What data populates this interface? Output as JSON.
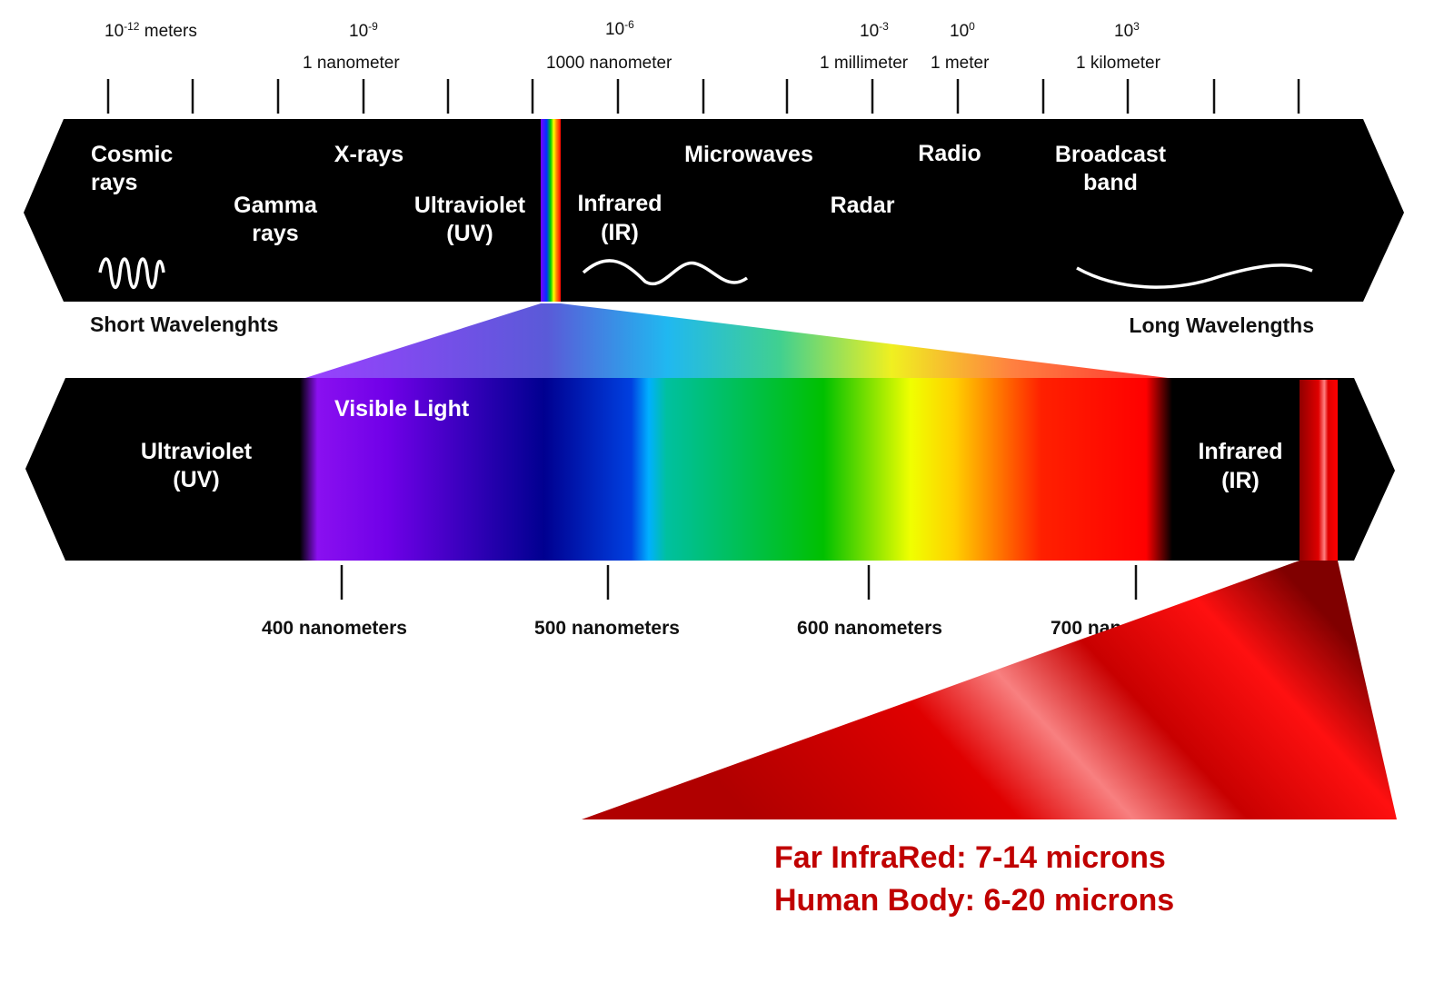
{
  "scale": {
    "exponents": [
      {
        "base": "10",
        "exp": "-12",
        "unit": " meters"
      },
      {
        "base": "10",
        "exp": "-9",
        "unit": ""
      },
      {
        "base": "10",
        "exp": "-6",
        "unit": ""
      },
      {
        "base": "10",
        "exp": "-3",
        "unit": ""
      },
      {
        "base": "10",
        "exp": "0",
        "unit": ""
      },
      {
        "base": "10",
        "exp": "3",
        "unit": ""
      }
    ],
    "names": [
      "1 nanometer",
      "1000 nanometer",
      "1 millimeter",
      "1 meter",
      "1 kilometer"
    ]
  },
  "top_band": {
    "cosmic": [
      "Cosmic",
      "rays"
    ],
    "gamma": [
      "Gamma",
      "rays"
    ],
    "xrays": "X-rays",
    "uv": [
      "Ultraviolet",
      "(UV)"
    ],
    "ir": [
      "Infrared",
      "(IR)"
    ],
    "microwaves": "Microwaves",
    "radar": "Radar",
    "radio": "Radio",
    "broadcast": [
      "Broadcast",
      "band"
    ]
  },
  "captions": {
    "short": "Short Wavelenghts",
    "long": "Long Wavelengths"
  },
  "visible_band": {
    "uv": [
      "Ultraviolet",
      "(UV)"
    ],
    "visible": "Visible Light",
    "ir": [
      "Infrared",
      "(IR)"
    ],
    "ticks": [
      "400 nanometers",
      "500 nanometers",
      "600 nanometers",
      "700 nanometers"
    ]
  },
  "notes": [
    "Far InfraRed: 7-14 microns",
    "Human Body: 6-20 microns"
  ],
  "colors": {
    "band": "#000000",
    "note": "#c00000",
    "ir_red": "#e00000"
  }
}
